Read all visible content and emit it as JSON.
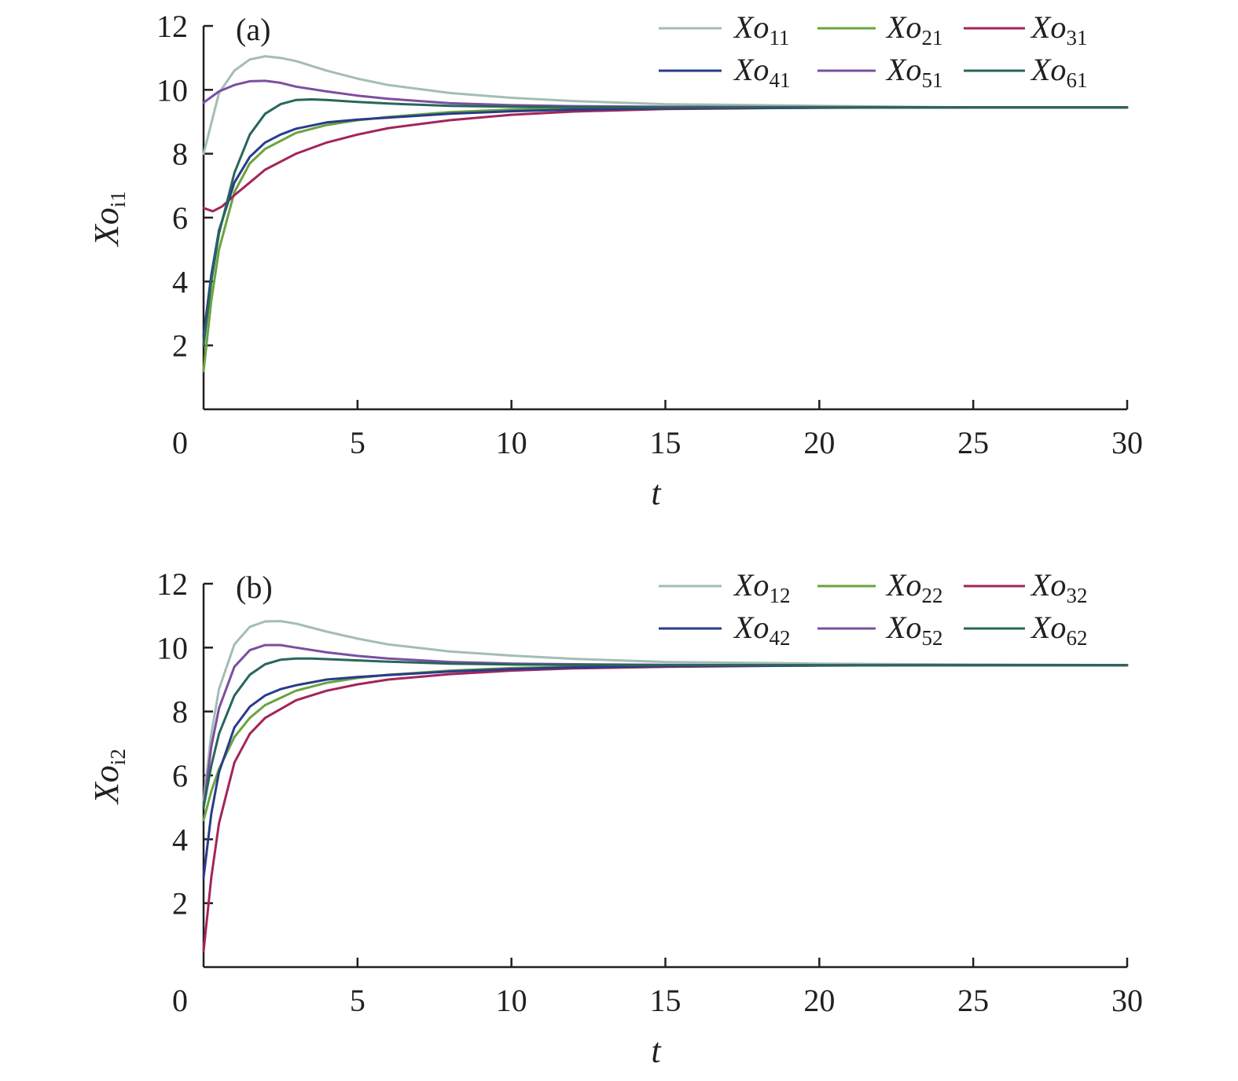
{
  "colors": {
    "axis": "#231f20",
    "series_palette": [
      "#a3bdb5",
      "#6aa33f",
      "#a2255a",
      "#283c8c",
      "#7b4fa0",
      "#28665b"
    ]
  },
  "chart_data": [
    {
      "type": "line",
      "panel_label": "(a)",
      "xlabel": "t",
      "ylabel": "Xo_i1",
      "ylabel_main": "Xo",
      "ylabel_sub": "i1",
      "xlim": [
        0,
        30
      ],
      "ylim": [
        0,
        12
      ],
      "x_ticks": [
        "0",
        "5",
        "10",
        "15",
        "20",
        "25",
        "30"
      ],
      "y_ticks": [
        "2",
        "4",
        "6",
        "8",
        "10",
        "12"
      ],
      "legend_position": "top-right",
      "series": [
        {
          "name": "Xo11",
          "label_main": "Xo",
          "label_sub": "11",
          "color": "#a3bdb5",
          "x": [
            0,
            0.5,
            1,
            1.5,
            2,
            2.5,
            3,
            4,
            5,
            6,
            8,
            10,
            12,
            15,
            20,
            25,
            30
          ],
          "y": [
            8.0,
            9.9,
            10.6,
            10.95,
            11.05,
            11.0,
            10.9,
            10.6,
            10.35,
            10.15,
            9.9,
            9.75,
            9.65,
            9.55,
            9.5,
            9.45,
            9.45
          ]
        },
        {
          "name": "Xo21",
          "label_main": "Xo",
          "label_sub": "21",
          "color": "#6aa33f",
          "x": [
            0,
            0.25,
            0.5,
            1,
            1.5,
            2,
            3,
            4,
            5,
            6,
            8,
            10,
            12,
            15,
            20,
            25,
            30
          ],
          "y": [
            1.2,
            3.4,
            5.0,
            6.8,
            7.7,
            8.15,
            8.65,
            8.9,
            9.05,
            9.15,
            9.3,
            9.38,
            9.42,
            9.44,
            9.45,
            9.45,
            9.45
          ]
        },
        {
          "name": "Xo31",
          "label_main": "Xo",
          "label_sub": "31",
          "color": "#a2255a",
          "x": [
            0,
            0.3,
            0.6,
            1,
            1.5,
            2,
            3,
            4,
            5,
            6,
            8,
            10,
            12,
            15,
            20,
            25,
            30
          ],
          "y": [
            6.3,
            6.2,
            6.35,
            6.7,
            7.1,
            7.5,
            8.0,
            8.35,
            8.6,
            8.8,
            9.05,
            9.22,
            9.32,
            9.4,
            9.44,
            9.45,
            9.45
          ]
        },
        {
          "name": "Xo41",
          "label_main": "Xo",
          "label_sub": "41",
          "color": "#283c8c",
          "x": [
            0,
            0.25,
            0.5,
            1,
            1.5,
            2,
            2.5,
            3,
            4,
            5,
            6,
            8,
            10,
            12,
            15,
            20,
            25,
            30
          ],
          "y": [
            2.3,
            4.2,
            5.6,
            7.1,
            7.9,
            8.35,
            8.6,
            8.78,
            8.98,
            9.07,
            9.13,
            9.25,
            9.33,
            9.38,
            9.42,
            9.44,
            9.45,
            9.45
          ]
        },
        {
          "name": "Xo51",
          "label_main": "Xo",
          "label_sub": "51",
          "color": "#7b4fa0",
          "x": [
            0,
            0.5,
            1,
            1.5,
            2,
            2.5,
            3,
            4,
            5,
            6,
            8,
            10,
            12,
            15,
            20,
            25,
            30
          ],
          "y": [
            9.6,
            9.95,
            10.15,
            10.27,
            10.28,
            10.22,
            10.1,
            9.95,
            9.82,
            9.72,
            9.58,
            9.52,
            9.49,
            9.47,
            9.46,
            9.45,
            9.45
          ]
        },
        {
          "name": "Xo61",
          "label_main": "Xo",
          "label_sub": "61",
          "color": "#28665b",
          "x": [
            0,
            0.25,
            0.5,
            1,
            1.5,
            2,
            2.5,
            3,
            3.5,
            4,
            5,
            6,
            8,
            10,
            12,
            15,
            20,
            25,
            30
          ],
          "y": [
            2.0,
            4.0,
            5.5,
            7.4,
            8.6,
            9.25,
            9.55,
            9.68,
            9.7,
            9.68,
            9.62,
            9.57,
            9.5,
            9.47,
            9.46,
            9.45,
            9.45,
            9.45,
            9.45
          ]
        }
      ]
    },
    {
      "type": "line",
      "panel_label": "(b)",
      "xlabel": "t",
      "ylabel": "Xo_i2",
      "ylabel_main": "Xo",
      "ylabel_sub": "i2",
      "xlim": [
        0,
        30
      ],
      "ylim": [
        0,
        12
      ],
      "x_ticks": [
        "0",
        "5",
        "10",
        "15",
        "20",
        "25",
        "30"
      ],
      "y_ticks": [
        "2",
        "4",
        "6",
        "8",
        "10",
        "12"
      ],
      "legend_position": "top-right",
      "series": [
        {
          "name": "Xo12",
          "label_main": "Xo",
          "label_sub": "12",
          "color": "#a3bdb5",
          "x": [
            0,
            0.25,
            0.5,
            1,
            1.5,
            2,
            2.5,
            3,
            4,
            5,
            6,
            8,
            10,
            12,
            15,
            20,
            25,
            30
          ],
          "y": [
            5.2,
            7.3,
            8.7,
            10.1,
            10.65,
            10.82,
            10.83,
            10.75,
            10.5,
            10.28,
            10.1,
            9.88,
            9.75,
            9.65,
            9.55,
            9.5,
            9.47,
            9.45
          ]
        },
        {
          "name": "Xo22",
          "label_main": "Xo",
          "label_sub": "22",
          "color": "#6aa33f",
          "x": [
            0,
            0.25,
            0.5,
            1,
            1.5,
            2,
            3,
            4,
            5,
            6,
            8,
            10,
            12,
            15,
            20,
            25,
            30
          ],
          "y": [
            4.6,
            5.5,
            6.2,
            7.2,
            7.8,
            8.2,
            8.65,
            8.9,
            9.05,
            9.15,
            9.28,
            9.36,
            9.4,
            9.43,
            9.45,
            9.45,
            9.45
          ]
        },
        {
          "name": "Xo32",
          "label_main": "Xo",
          "label_sub": "32",
          "color": "#a2255a",
          "x": [
            0,
            0.25,
            0.5,
            1,
            1.5,
            2,
            3,
            4,
            5,
            6,
            8,
            10,
            12,
            15,
            20,
            25,
            30
          ],
          "y": [
            0.5,
            2.8,
            4.5,
            6.4,
            7.3,
            7.8,
            8.35,
            8.65,
            8.85,
            9.0,
            9.17,
            9.28,
            9.35,
            9.4,
            9.44,
            9.45,
            9.45
          ]
        },
        {
          "name": "Xo42",
          "label_main": "Xo",
          "label_sub": "42",
          "color": "#283c8c",
          "x": [
            0,
            0.25,
            0.5,
            1,
            1.5,
            2,
            2.5,
            3,
            4,
            5,
            6,
            8,
            10,
            12,
            15,
            20,
            25,
            30
          ],
          "y": [
            2.8,
            4.8,
            6.1,
            7.5,
            8.15,
            8.5,
            8.7,
            8.82,
            9.0,
            9.08,
            9.14,
            9.25,
            9.33,
            9.38,
            9.42,
            9.44,
            9.45,
            9.45
          ]
        },
        {
          "name": "Xo52",
          "label_main": "Xo",
          "label_sub": "52",
          "color": "#7b4fa0",
          "x": [
            0,
            0.25,
            0.5,
            1,
            1.5,
            2,
            2.5,
            3,
            4,
            5,
            6,
            8,
            10,
            12,
            15,
            20,
            25,
            30
          ],
          "y": [
            5.0,
            6.9,
            8.1,
            9.4,
            9.92,
            10.08,
            10.08,
            10.0,
            9.85,
            9.74,
            9.66,
            9.55,
            9.5,
            9.48,
            9.46,
            9.45,
            9.45,
            9.45
          ]
        },
        {
          "name": "Xo62",
          "label_main": "Xo",
          "label_sub": "62",
          "color": "#28665b",
          "x": [
            0,
            0.25,
            0.5,
            1,
            1.5,
            2,
            2.5,
            3,
            3.5,
            4,
            5,
            6,
            8,
            10,
            12,
            15,
            20,
            25,
            30
          ],
          "y": [
            5.0,
            6.3,
            7.3,
            8.5,
            9.15,
            9.48,
            9.62,
            9.66,
            9.66,
            9.64,
            9.6,
            9.56,
            9.5,
            9.47,
            9.46,
            9.45,
            9.45,
            9.45,
            9.45
          ]
        }
      ]
    }
  ]
}
